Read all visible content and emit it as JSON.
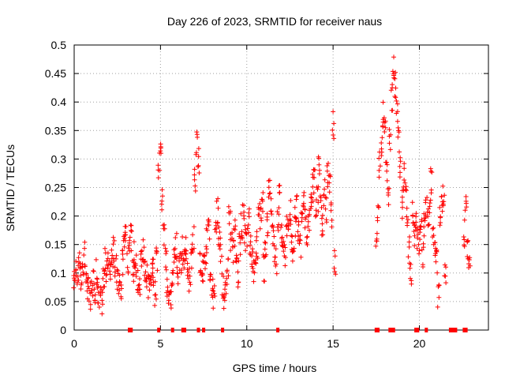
{
  "chart_data": {
    "type": "scatter",
    "title": "Day 226 of 2023, SRMTID for receiver naus",
    "xlabel": "GPS time / hours",
    "ylabel": "SRMTID / TECUs",
    "xlim": [
      0,
      24
    ],
    "ylim": [
      0,
      0.5
    ],
    "x_ticks": [
      0,
      5,
      10,
      15,
      20
    ],
    "x_tick_labels": [
      "0",
      "5",
      "10",
      "15",
      "20"
    ],
    "y_ticks": [
      0,
      0.05,
      0.1,
      0.15,
      0.2,
      0.25,
      0.3,
      0.35,
      0.4,
      0.45,
      0.5
    ],
    "y_tick_labels": [
      "0",
      "0.05",
      "0.1",
      "0.15",
      "0.2",
      "0.25",
      "0.3",
      "0.35",
      "0.4",
      "0.45",
      "0.5"
    ],
    "grid": true,
    "marker": "+",
    "color": "#ff0000",
    "series": [
      {
        "name": "SRMTID",
        "x": [
          0.0,
          0.1,
          0.2,
          0.3,
          0.4,
          0.5,
          0.6,
          0.7,
          0.8,
          0.9,
          1.0,
          1.1,
          1.2,
          1.3,
          1.4,
          1.5,
          1.6,
          1.7,
          1.8,
          1.9,
          2.0,
          2.1,
          2.2,
          2.3,
          2.4,
          2.5,
          2.6,
          2.7,
          2.8,
          2.9,
          3.0,
          3.1,
          3.2,
          3.3,
          3.4,
          3.5,
          3.6,
          3.7,
          3.8,
          3.9,
          4.0,
          4.1,
          4.2,
          4.3,
          4.4,
          4.5,
          4.6,
          4.7,
          4.8,
          4.9,
          5.0,
          5.1,
          5.2,
          5.3,
          5.4,
          5.5,
          5.6,
          5.7,
          5.8,
          5.9,
          6.0,
          6.1,
          6.2,
          6.3,
          6.4,
          6.5,
          6.6,
          6.7,
          6.8,
          6.9,
          7.0,
          7.1,
          7.2,
          7.3,
          7.4,
          7.5,
          7.6,
          7.7,
          7.8,
          7.9,
          8.0,
          8.1,
          8.2,
          8.3,
          8.4,
          8.5,
          8.6,
          8.7,
          8.8,
          8.9,
          9.0,
          9.1,
          9.2,
          9.3,
          9.4,
          9.5,
          9.6,
          9.7,
          9.8,
          9.9,
          10.0,
          10.1,
          10.2,
          10.3,
          10.4,
          10.5,
          10.6,
          10.7,
          10.8,
          10.9,
          11.0,
          11.1,
          11.2,
          11.3,
          11.4,
          11.5,
          11.6,
          11.7,
          11.8,
          11.9,
          12.0,
          12.1,
          12.2,
          12.3,
          12.4,
          12.5,
          12.6,
          12.7,
          12.8,
          12.9,
          13.0,
          13.1,
          13.2,
          13.3,
          13.4,
          13.5,
          13.6,
          13.7,
          13.8,
          13.9,
          14.0,
          14.1,
          14.2,
          14.3,
          14.4,
          14.5,
          14.6,
          14.7,
          14.8,
          14.9,
          15.0,
          15.1,
          17.5,
          17.6,
          17.7,
          17.8,
          17.9,
          18.0,
          18.1,
          18.2,
          18.3,
          18.4,
          18.5,
          18.6,
          18.7,
          18.8,
          18.9,
          19.0,
          19.1,
          19.2,
          19.3,
          19.4,
          19.5,
          19.6,
          19.7,
          19.8,
          19.9,
          20.0,
          20.1,
          20.2,
          20.3,
          20.4,
          20.5,
          20.6,
          20.7,
          20.8,
          20.9,
          21.0,
          21.1,
          21.2,
          21.3,
          21.4,
          21.5,
          22.6,
          22.7,
          22.8,
          22.9
        ],
        "y": [
          0.09,
          0.11,
          0.1,
          0.12,
          0.09,
          0.1,
          0.13,
          0.08,
          0.07,
          0.06,
          0.09,
          0.08,
          0.07,
          0.1,
          0.06,
          0.06,
          0.05,
          0.09,
          0.12,
          0.11,
          0.13,
          0.1,
          0.12,
          0.14,
          0.11,
          0.09,
          0.08,
          0.07,
          0.12,
          0.15,
          0.17,
          0.12,
          0.14,
          0.16,
          0.1,
          0.13,
          0.11,
          0.09,
          0.08,
          0.12,
          0.14,
          0.1,
          0.09,
          0.08,
          0.07,
          0.11,
          0.1,
          0.06,
          0.12,
          0.29,
          0.31,
          0.23,
          0.17,
          0.12,
          0.07,
          0.05,
          0.06,
          0.08,
          0.12,
          0.15,
          0.1,
          0.13,
          0.11,
          0.14,
          0.12,
          0.15,
          0.1,
          0.09,
          0.13,
          0.16,
          0.26,
          0.33,
          0.3,
          0.12,
          0.09,
          0.11,
          0.13,
          0.16,
          0.18,
          0.1,
          0.08,
          0.06,
          0.19,
          0.21,
          0.17,
          0.14,
          0.08,
          0.05,
          0.07,
          0.12,
          0.2,
          0.16,
          0.14,
          0.17,
          0.12,
          0.1,
          0.15,
          0.18,
          0.2,
          0.16,
          0.17,
          0.19,
          0.14,
          0.12,
          0.1,
          0.13,
          0.15,
          0.21,
          0.2,
          0.22,
          0.11,
          0.15,
          0.18,
          0.24,
          0.22,
          0.16,
          0.14,
          0.12,
          0.19,
          0.23,
          0.17,
          0.15,
          0.13,
          0.18,
          0.2,
          0.21,
          0.16,
          0.14,
          0.19,
          0.22,
          0.18,
          0.15,
          0.21,
          0.24,
          0.2,
          0.17,
          0.19,
          0.22,
          0.25,
          0.26,
          0.21,
          0.23,
          0.28,
          0.22,
          0.19,
          0.24,
          0.21,
          0.27,
          0.25,
          0.2,
          0.36,
          0.12,
          0.17,
          0.21,
          0.29,
          0.33,
          0.38,
          0.35,
          0.28,
          0.24,
          0.33,
          0.41,
          0.46,
          0.43,
          0.38,
          0.33,
          0.29,
          0.22,
          0.27,
          0.24,
          0.19,
          0.14,
          0.1,
          0.21,
          0.17,
          0.19,
          0.16,
          0.15,
          0.2,
          0.13,
          0.18,
          0.22,
          0.19,
          0.21,
          0.26,
          0.16,
          0.14,
          0.12,
          0.06,
          0.2,
          0.21,
          0.24,
          0.09,
          0.17,
          0.21,
          0.14,
          0.11
        ]
      }
    ],
    "gap_markers_x": [
      3.2,
      3.3,
      4.9,
      5.7,
      6.3,
      6.4,
      7.2,
      7.5,
      8.6,
      11.8,
      17.5,
      17.6,
      18.3,
      18.4,
      18.5,
      19.8,
      19.9,
      20.4,
      21.8,
      21.9,
      22.0,
      22.1,
      22.6,
      22.7
    ]
  }
}
